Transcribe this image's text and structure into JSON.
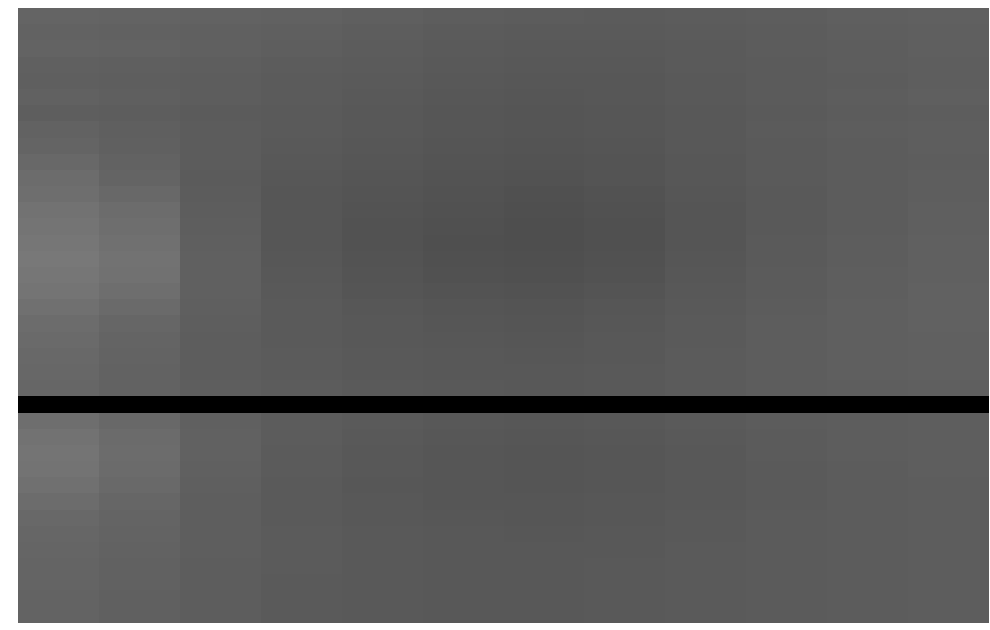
{
  "chart_data": {
    "type": "heatmap",
    "tick_labels": false,
    "zlim": [
      0,
      255
    ],
    "cells": [
      [
        100,
        99,
        98,
        97,
        95,
        93,
        92,
        91,
        92,
        93,
        95,
        96
      ],
      [
        98,
        97,
        96,
        95,
        93,
        91,
        90,
        90,
        91,
        92,
        94,
        95
      ],
      [
        99,
        98,
        96,
        94,
        92,
        90,
        89,
        89,
        90,
        92,
        93,
        95
      ],
      [
        96,
        95,
        94,
        92,
        91,
        89,
        88,
        88,
        90,
        91,
        93,
        94
      ],
      [
        95,
        94,
        93,
        91,
        90,
        88,
        87,
        87,
        89,
        91,
        92,
        94
      ],
      [
        97,
        95,
        93,
        91,
        89,
        87,
        86,
        87,
        89,
        91,
        93,
        95
      ],
      [
        94,
        93,
        91,
        90,
        88,
        86,
        85,
        86,
        88,
        90,
        92,
        93
      ],
      [
        98,
        95,
        92,
        90,
        88,
        86,
        85,
        86,
        88,
        91,
        93,
        94
      ],
      [
        100,
        96,
        92,
        89,
        87,
        85,
        84,
        85,
        88,
        90,
        92,
        94
      ],
      [
        104,
        98,
        92,
        88,
        86,
        84,
        83,
        84,
        87,
        90,
        92,
        93
      ],
      [
        108,
        100,
        91,
        87,
        85,
        83,
        82,
        84,
        87,
        90,
        92,
        94
      ],
      [
        110,
        104,
        92,
        86,
        84,
        82,
        80,
        82,
        86,
        89,
        92,
        94
      ],
      [
        114,
        108,
        93,
        86,
        83,
        81,
        79,
        81,
        85,
        89,
        92,
        95
      ],
      [
        116,
        110,
        94,
        86,
        82,
        80,
        78,
        80,
        85,
        89,
        92,
        95
      ],
      [
        118,
        112,
        95,
        86,
        82,
        79,
        78,
        80,
        85,
        90,
        93,
        96
      ],
      [
        120,
        114,
        96,
        87,
        83,
        80,
        79,
        81,
        86,
        90,
        93,
        96
      ],
      [
        118,
        113,
        96,
        88,
        84,
        81,
        80,
        82,
        87,
        91,
        94,
        96
      ],
      [
        116,
        110,
        96,
        89,
        85,
        83,
        82,
        84,
        88,
        91,
        94,
        97
      ],
      [
        112,
        106,
        95,
        90,
        87,
        85,
        84,
        86,
        89,
        92,
        95,
        97
      ],
      [
        108,
        102,
        94,
        90,
        88,
        86,
        85,
        87,
        90,
        93,
        95,
        97
      ],
      [
        106,
        100,
        93,
        90,
        88,
        87,
        86,
        88,
        90,
        93,
        95,
        96
      ],
      [
        104,
        99,
        93,
        91,
        89,
        88,
        87,
        88,
        91,
        93,
        95,
        96
      ],
      [
        103,
        98,
        93,
        91,
        89,
        88,
        88,
        89,
        91,
        93,
        95,
        96
      ],
      [
        102,
        98,
        94,
        92,
        90,
        89,
        88,
        89,
        91,
        93,
        94,
        95
      ],
      [
        0,
        0,
        0,
        0,
        0,
        0,
        0,
        0,
        0,
        0,
        0,
        0
      ],
      [
        110,
        104,
        96,
        92,
        90,
        88,
        87,
        88,
        90,
        92,
        93,
        94
      ],
      [
        114,
        107,
        97,
        92,
        89,
        87,
        86,
        87,
        89,
        91,
        93,
        94
      ],
      [
        116,
        108,
        97,
        91,
        88,
        86,
        85,
        86,
        88,
        91,
        93,
        94
      ],
      [
        115,
        107,
        96,
        91,
        88,
        86,
        85,
        86,
        88,
        90,
        92,
        94
      ],
      [
        112,
        105,
        95,
        90,
        87,
        86,
        85,
        86,
        88,
        90,
        92,
        93
      ],
      [
        108,
        102,
        94,
        90,
        88,
        86,
        86,
        87,
        88,
        90,
        92,
        93
      ],
      [
        104,
        100,
        94,
        90,
        88,
        87,
        86,
        87,
        89,
        91,
        92,
        93
      ],
      [
        102,
        99,
        94,
        91,
        89,
        88,
        87,
        88,
        89,
        91,
        92,
        93
      ],
      [
        101,
        98,
        94,
        91,
        89,
        88,
        88,
        88,
        90,
        91,
        92,
        93
      ],
      [
        100,
        97,
        93,
        91,
        89,
        88,
        88,
        89,
        90,
        91,
        92,
        93
      ],
      [
        100,
        97,
        93,
        90,
        89,
        88,
        88,
        89,
        90,
        91,
        92,
        93
      ],
      [
        99,
        96,
        93,
        90,
        89,
        88,
        88,
        89,
        90,
        91,
        92,
        93
      ],
      [
        99,
        96,
        93,
        90,
        89,
        88,
        88,
        89,
        90,
        91,
        92,
        93
      ]
    ]
  }
}
